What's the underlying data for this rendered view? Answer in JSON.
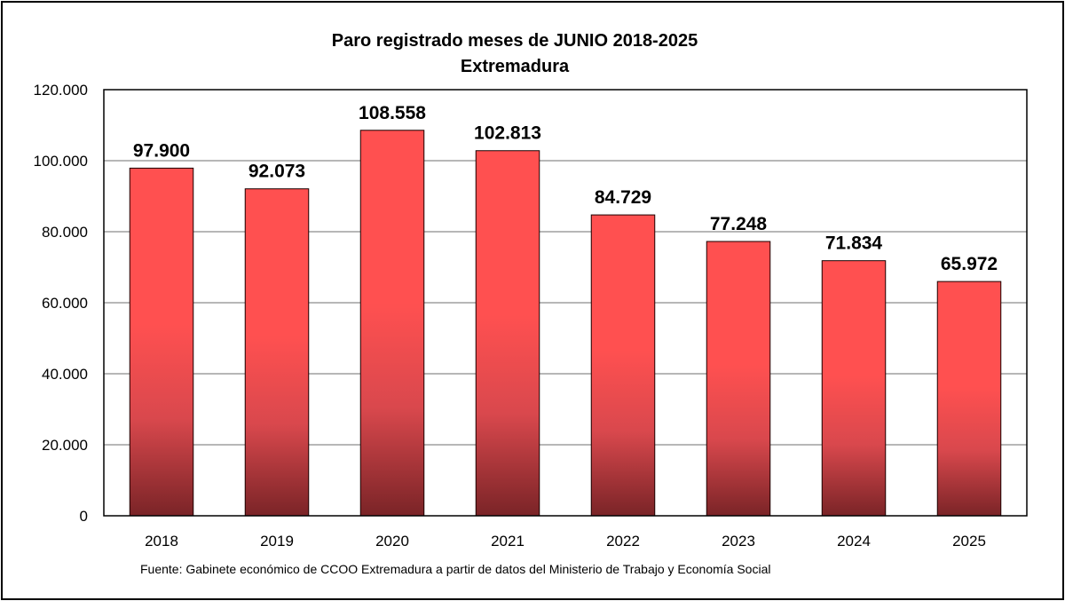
{
  "chart_data": {
    "type": "bar",
    "title": "Paro registrado meses de JUNIO 2018-2025",
    "subtitle": "Extremadura",
    "categories": [
      "2018",
      "2019",
      "2020",
      "2021",
      "2022",
      "2023",
      "2024",
      "2025"
    ],
    "values": [
      97900,
      92073,
      108558,
      102813,
      84729,
      77248,
      71834,
      65972
    ],
    "value_labels": [
      "97.900",
      "92.073",
      "108.558",
      "102.813",
      "84.729",
      "77.248",
      "71.834",
      "65.972"
    ],
    "ylim": [
      0,
      120000
    ],
    "y_ticks": [
      0,
      20000,
      40000,
      60000,
      80000,
      100000,
      120000
    ],
    "y_tick_labels": [
      "0",
      "20.000",
      "40.000",
      "60.000",
      "80.000",
      "100.000",
      "120.000"
    ],
    "grid": true,
    "xlabel": "",
    "ylabel": "",
    "source": "Fuente: Gabinete económico de CCOO Extremadura a partir de datos del Ministerio de Trabajo y Economía Social",
    "colors": {
      "bar_top": "#ff5050",
      "bar_mid": "#d9484d",
      "bar_bottom": "#7a2427",
      "bar_outline": "#1a0000",
      "grid": "#8c8c8c"
    }
  }
}
